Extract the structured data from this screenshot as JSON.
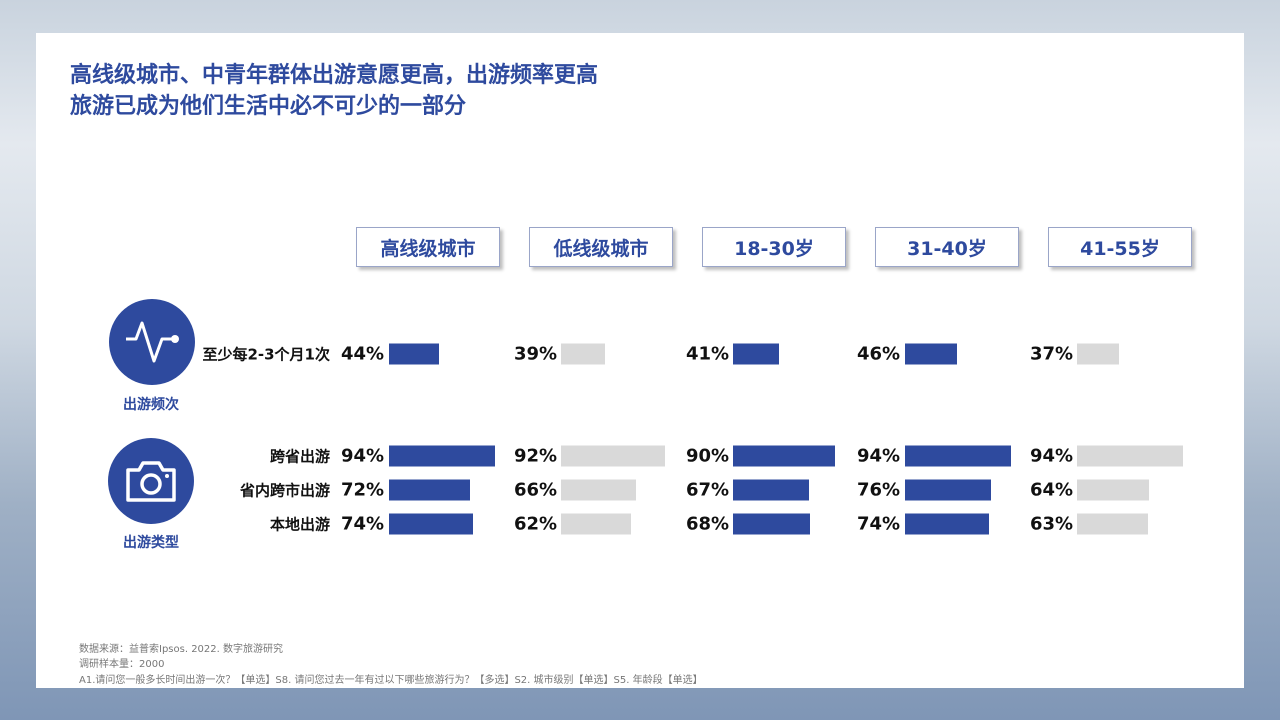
{
  "title": {
    "line1": "高线级城市、中青年群体出游意愿更高，出游频率更高",
    "line2": "旅游已成为他们生活中必不可少的一部分"
  },
  "groups": [
    {
      "label": "出游频次",
      "icon": "pulse-icon"
    },
    {
      "label": "出游类型",
      "icon": "camera-icon"
    }
  ],
  "colors": {
    "highlight": "#2e4a9e",
    "muted": "#d9d9d9"
  },
  "chart_data": {
    "type": "bar",
    "categories": [
      "高线级城市",
      "低线级城市",
      "18-30岁",
      "31-40岁",
      "41-55岁"
    ],
    "highlighted": [
      true,
      false,
      true,
      true,
      false
    ],
    "rows": [
      {
        "group": "出游频次",
        "label": "至少每2-3个月1次",
        "values": [
          44,
          39,
          41,
          46,
          37
        ]
      },
      {
        "group": "出游类型",
        "label": "跨省出游",
        "values": [
          94,
          92,
          90,
          94,
          94
        ]
      },
      {
        "group": "出游类型",
        "label": "省内跨市出游",
        "values": [
          72,
          66,
          67,
          76,
          64
        ]
      },
      {
        "group": "出游类型",
        "label": "本地出游",
        "values": [
          74,
          62,
          68,
          74,
          63
        ]
      }
    ],
    "unit": "%"
  },
  "footer": {
    "source": "数据来源：益普索Ipsos. 2022. 数字旅游研究",
    "sample": "调研样本量：2000",
    "questions": "A1.请问您一般多长时间出游一次？【单选】S8. 请问您过去一年有过以下哪些旅游行为？【多选】S2. 城市级别【单选】S5. 年龄段【单选】"
  }
}
